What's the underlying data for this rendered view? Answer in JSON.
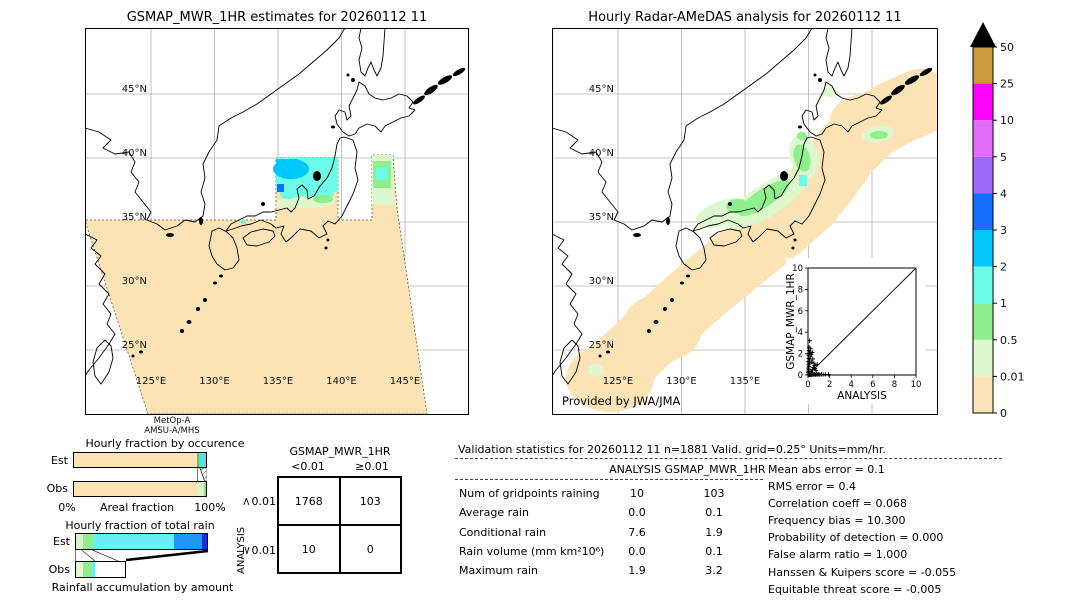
{
  "left_map": {
    "title": "GSMAP_MWR_1HR estimates for 20260112 11",
    "sat_line1": "MetOp-A",
    "sat_line2": "AMSU-A/MHS",
    "lat_labels": [
      "45°N",
      "40°N",
      "35°N",
      "30°N",
      "25°N"
    ],
    "lon_labels": [
      "125°E",
      "130°E",
      "135°E",
      "140°E",
      "145°E"
    ]
  },
  "right_map": {
    "title": "Hourly Radar-AMeDAS analysis for 20260112 11",
    "provided_by": "Provided by JWA/JMA",
    "lat_labels": [
      "45°N",
      "40°N",
      "35°N",
      "30°N",
      "25°N"
    ],
    "lon_labels": [
      "125°E",
      "130°E",
      "135°E",
      "140°E",
      "145°E"
    ],
    "inset": {
      "xlabel": "ANALYSIS",
      "ylabel": "GSMAP_MWR_1HR",
      "x_ticks": [
        "0",
        "2",
        "4",
        "6",
        "8",
        "10"
      ],
      "y_ticks": [
        "0",
        "2",
        "4",
        "6",
        "8",
        "10"
      ]
    }
  },
  "colorbar": {
    "units": "mm/hr",
    "labels": [
      "50",
      "25",
      "10",
      "5",
      "4",
      "3",
      "2",
      "1",
      "0.5",
      "0.01",
      "0"
    ],
    "colors": [
      "#cd9b3e",
      "#fb02fb",
      "#e26bf9",
      "#9b69fc",
      "#146dfc",
      "#00c8fb",
      "#6cfbe7",
      "#8df08c",
      "#def8cd",
      "#fbe3b6"
    ],
    "overflow_color": "#000000"
  },
  "occurrence_chart": {
    "title": "Hourly fraction by occurence",
    "x_left": "0%",
    "x_mid": "Areal fraction",
    "x_right": "100%",
    "rows": [
      {
        "label": "Est",
        "segments": [
          {
            "bin": "0-0.01",
            "color": "#fbe3b6",
            "pct": 93.2
          },
          {
            "bin": "0.5-1",
            "color": "#55cc55",
            "pct": 1.2
          },
          {
            "bin": "1-2",
            "color": "#59dff2",
            "pct": 5.6
          }
        ]
      },
      {
        "label": "Obs",
        "segments": [
          {
            "bin": "0-0.01",
            "color": "#fbe3b6",
            "pct": 93.0
          },
          {
            "bin": "0.01-0.5",
            "color": "#d9f4c6",
            "pct": 5.5
          },
          {
            "bin": "0.5-1",
            "color": "#7ae87a",
            "pct": 1.5
          }
        ]
      }
    ]
  },
  "totalrain_chart": {
    "title": "Hourly fraction of total rain",
    "footer": "Rainfall accumulation by amount",
    "rows": [
      {
        "label": "Est",
        "segments": [
          {
            "bin": "0.01-0.5",
            "color": "#d9f4c6",
            "pct": 5
          },
          {
            "bin": "0.5-1",
            "color": "#8df08c",
            "pct": 8
          },
          {
            "bin": "1-2",
            "color": "#6ceef6",
            "pct": 61.5
          },
          {
            "bin": "2-3",
            "color": "#2096f5",
            "pct": 21.5
          },
          {
            "bin": "3-4",
            "color": "#1c2ed1",
            "pct": 4
          }
        ]
      },
      {
        "label": "Obs",
        "segments": [
          {
            "bin": "0.01-0.5",
            "color": "#e2f7d0",
            "pct": 15
          },
          {
            "bin": "0.5-1",
            "color": "#8df08c",
            "pct": 17.3
          },
          {
            "bin": "1-2",
            "color": "#6ceef6",
            "pct": 6
          }
        ]
      }
    ]
  },
  "contingency": {
    "title": "GSMAP_MWR_1HR",
    "col_labels": [
      "<0.01",
      "≥0.01"
    ],
    "row_labels": [
      {
        "prefix": "<",
        "num": "0.01"
      },
      {
        "prefix": "≥",
        "num": "0.01"
      }
    ],
    "axis_label": "ANALYSIS",
    "values": [
      [
        "1768",
        "103"
      ],
      [
        "10",
        "0"
      ]
    ]
  },
  "validation": {
    "title": "Validation statistics for 20260112 11  n=1881 Valid. grid=0.25° Units=mm/hr.",
    "col1": "ANALYSIS",
    "col2": "GSMAP_MWR_1HR",
    "rows": [
      {
        "label": "Num of gridpoints raining",
        "a": "10",
        "g": "103"
      },
      {
        "label": "Average rain",
        "a": "0.0",
        "g": "0.1"
      },
      {
        "label": "Conditional rain",
        "a": "7.6",
        "g": "1.9"
      },
      {
        "label": "Rain volume (mm km²10⁶)",
        "a": "0.0",
        "g": "0.1"
      },
      {
        "label": "Maximum rain",
        "a": "1.9",
        "g": "3.2"
      }
    ],
    "extra_stats": [
      "Mean abs error =    0.1",
      "RMS error =    0.4",
      "Correlation coeff =  0.068",
      "Frequency bias = 10.300",
      "Probability of detection =  0.000",
      "False alarm ratio =  1.000",
      "Hanssen & Kuipers score = -0.055",
      "Equitable threat score = -0.005"
    ]
  },
  "chart_data": [
    {
      "type": "heatmap",
      "name": "gsmap-estimate-map",
      "title": "GSMAP_MWR_1HR estimates for 20260112 11",
      "units": "mm/hr",
      "scale_levels": [
        0,
        0.01,
        0.5,
        1,
        2,
        3,
        4,
        5,
        10,
        25,
        50
      ],
      "lat_ticks": [
        "45N",
        "40N",
        "35N",
        "30N",
        "25N"
      ],
      "lon_ticks": [
        "125E",
        "130E",
        "135E",
        "140E",
        "145E"
      ],
      "satellite": "MetOp-A AMSU-A/MHS"
    },
    {
      "type": "heatmap",
      "name": "radar-amedas-map",
      "title": "Hourly Radar-AMeDAS analysis for 20260112 11",
      "units": "mm/hr",
      "scale_levels": [
        0,
        0.01,
        0.5,
        1,
        2,
        3,
        4,
        5,
        10,
        25,
        50
      ],
      "credit": "Provided by JWA/JMA"
    },
    {
      "type": "bar",
      "name": "hourly-fraction-by-occurence",
      "title": "Hourly fraction by occurence",
      "categories": [
        "Est",
        "Obs"
      ],
      "xlabel": "Areal fraction",
      "xlim": [
        "0%",
        "100%"
      ],
      "series": [
        {
          "name": "0-0.01",
          "values": [
            93.2,
            93.0
          ]
        },
        {
          "name": "0.01-0.5",
          "values": [
            0,
            5.5
          ]
        },
        {
          "name": "0.5-1",
          "values": [
            1.2,
            1.5
          ]
        },
        {
          "name": "1-2",
          "values": [
            5.6,
            0
          ]
        }
      ]
    },
    {
      "type": "bar",
      "name": "hourly-fraction-of-total-rain",
      "title": "Hourly fraction of total rain",
      "categories": [
        "Est",
        "Obs"
      ],
      "xlabel": "Rainfall accumulation by amount",
      "series": [
        {
          "name": "0.01-0.5",
          "values": [
            5,
            15
          ]
        },
        {
          "name": "0.5-1",
          "values": [
            8,
            17.3
          ]
        },
        {
          "name": "1-2",
          "values": [
            61.5,
            6
          ]
        },
        {
          "name": "2-3",
          "values": [
            21.5,
            0
          ]
        },
        {
          "name": "3-4",
          "values": [
            4,
            0
          ]
        }
      ]
    },
    {
      "type": "table",
      "name": "contingency-table",
      "title": "GSMAP_MWR_1HR vs ANALYSIS",
      "columns": [
        "<0.01",
        ">=0.01"
      ],
      "rows": [
        "<0.01",
        ">=0.01"
      ],
      "values": [
        [
          1768,
          103
        ],
        [
          10,
          0
        ]
      ]
    },
    {
      "type": "table",
      "name": "validation-statistics",
      "title": "Validation statistics for 20260112 11 n=1881 Valid. grid=0.25deg Units=mm/hr.",
      "columns": [
        "ANALYSIS",
        "GSMAP_MWR_1HR"
      ],
      "rows": [
        {
          "label": "Num of gridpoints raining",
          "values": [
            10,
            103
          ]
        },
        {
          "label": "Average rain",
          "values": [
            0.0,
            0.1
          ]
        },
        {
          "label": "Conditional rain",
          "values": [
            7.6,
            1.9
          ]
        },
        {
          "label": "Rain volume (mm km2 10^6)",
          "values": [
            0.0,
            0.1
          ]
        },
        {
          "label": "Maximum rain",
          "values": [
            1.9,
            3.2
          ]
        }
      ],
      "scores": {
        "mean_abs_error": 0.1,
        "rms_error": 0.4,
        "correlation_coeff": 0.068,
        "frequency_bias": 10.3,
        "probability_of_detection": 0.0,
        "false_alarm_ratio": 1.0,
        "hanssen_kuipers": -0.055,
        "equitable_threat": -0.005
      }
    },
    {
      "type": "scatter",
      "name": "analysis-vs-gsmap-scatter",
      "xlabel": "ANALYSIS",
      "ylabel": "GSMAP_MWR_1HR",
      "xlim": [
        0,
        10
      ],
      "ylim": [
        0,
        10
      ],
      "diagonal": true,
      "points": [
        [
          0.05,
          0.02
        ],
        [
          0.1,
          0.03
        ],
        [
          0.15,
          0.02
        ],
        [
          0.2,
          0.05
        ],
        [
          0.25,
          0.03
        ],
        [
          0.3,
          0.06
        ],
        [
          0.35,
          0.02
        ],
        [
          0.4,
          0.05
        ],
        [
          0.45,
          0.1
        ],
        [
          0.5,
          0.04
        ],
        [
          0.6,
          0.08
        ],
        [
          0.7,
          0.03
        ],
        [
          0.8,
          0.06
        ],
        [
          0.9,
          0.04
        ],
        [
          1.0,
          0.08
        ],
        [
          1.1,
          0.03
        ],
        [
          1.25,
          0.06
        ],
        [
          1.4,
          0.04
        ],
        [
          1.6,
          0.05
        ],
        [
          1.9,
          0.05
        ],
        [
          0.02,
          0.2
        ],
        [
          0.05,
          0.35
        ],
        [
          0.08,
          0.5
        ],
        [
          0.03,
          0.65
        ],
        [
          0.1,
          0.8
        ],
        [
          0.06,
          0.95
        ],
        [
          0.12,
          1.1
        ],
        [
          0.04,
          1.25
        ],
        [
          0.15,
          1.4
        ],
        [
          0.08,
          1.55
        ],
        [
          0.2,
          1.7
        ],
        [
          0.05,
          1.85
        ],
        [
          0.12,
          2.0
        ],
        [
          0.18,
          2.15
        ],
        [
          0.07,
          2.3
        ],
        [
          0.25,
          2.45
        ],
        [
          0.1,
          2.6
        ],
        [
          0.15,
          3.2
        ],
        [
          0.3,
          0.3
        ],
        [
          0.4,
          0.5
        ],
        [
          0.5,
          0.7
        ],
        [
          0.6,
          0.9
        ],
        [
          0.35,
          1.2
        ],
        [
          0.45,
          1.5
        ],
        [
          0.55,
          1.1
        ],
        [
          0.65,
          0.6
        ],
        [
          0.75,
          0.4
        ],
        [
          0.3,
          1.9
        ],
        [
          0.4,
          2.1
        ],
        [
          0.85,
          1.0
        ]
      ]
    }
  ]
}
